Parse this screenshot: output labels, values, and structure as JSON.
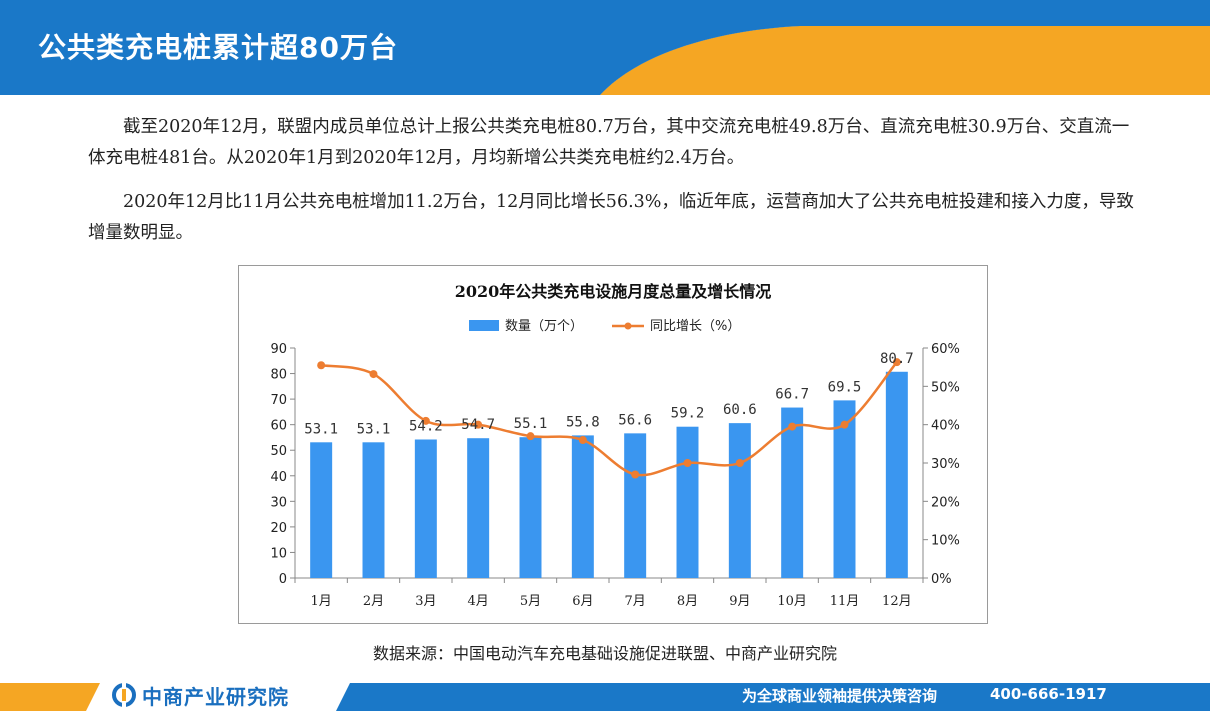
{
  "header": {
    "title": "公共类充电桩累计超80万台"
  },
  "paragraphs": [
    "截至2020年12月，联盟内成员单位总计上报公共类充电桩80.7万台，其中交流充电桩49.8万台、直流充电桩30.9万台、交直流一体充电桩481台。从2020年1月到2020年12月，月均新增公共类充电桩约2.4万台。",
    "2020年12月比11月公共充电桩增加11.2万台，12月同比增长56.3%，临近年底，运营商加大了公共充电桩投建和接入力度，导致增量数明显。"
  ],
  "chart_data": {
    "type": "bar",
    "title": "2020年公共类充电设施月度总量及增长情况",
    "categories": [
      "1月",
      "2月",
      "3月",
      "4月",
      "5月",
      "6月",
      "7月",
      "8月",
      "9月",
      "10月",
      "11月",
      "12月"
    ],
    "series": [
      {
        "name": "数量（万个）",
        "type": "bar",
        "axis": "left",
        "values": [
          53.1,
          53.1,
          54.2,
          54.7,
          55.1,
          55.8,
          56.6,
          59.2,
          60.6,
          66.7,
          69.5,
          80.7
        ]
      },
      {
        "name": "同比增长（%）",
        "type": "line",
        "axis": "right",
        "values": [
          55.5,
          53.2,
          41,
          40,
          37,
          36,
          27,
          30,
          30,
          39.5,
          40,
          56.3
        ]
      }
    ],
    "ylim_left": [
      0,
      90
    ],
    "yticks_left": [
      "0",
      "10",
      "20",
      "30",
      "40",
      "50",
      "60",
      "70",
      "80",
      "90"
    ],
    "ylim_right": [
      0,
      60
    ],
    "yticks_right": [
      "0%",
      "10%",
      "20%",
      "30%",
      "40%",
      "50%",
      "60%"
    ],
    "legend": "top-center",
    "grid": false,
    "colors": {
      "bar": "#3a96f0",
      "line": "#ed7d31"
    }
  },
  "source": "数据来源：中国电动汽车充电基础设施促进联盟、中商产业研究院",
  "footer": {
    "brand": "中商产业研究院",
    "slogan": "为全球商业领袖提供决策咨询",
    "phone": "400-666-1917"
  },
  "icons": {
    "brand_logo": "brand-logo-icon"
  }
}
